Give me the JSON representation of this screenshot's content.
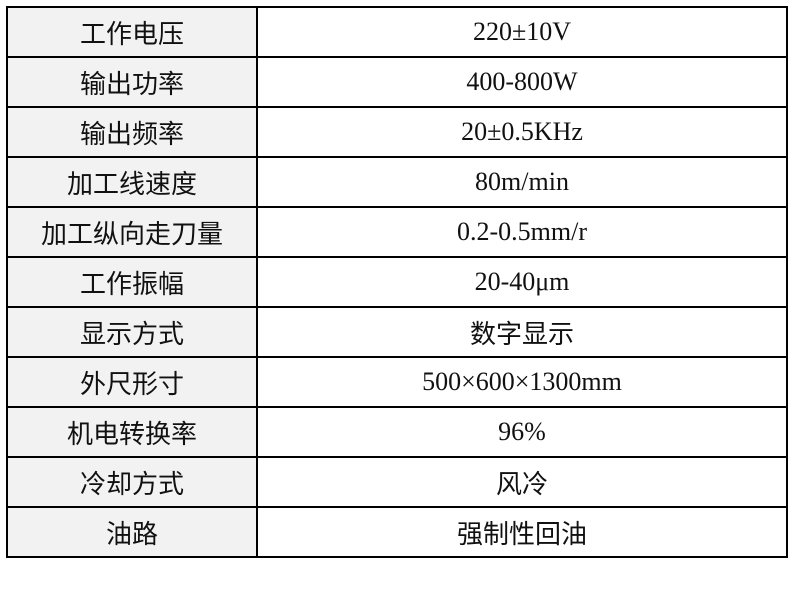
{
  "table": {
    "rows": [
      [
        "工作电压",
        "220±10V"
      ],
      [
        "输出功率",
        "400-800W"
      ],
      [
        "输出频率",
        "20±0.5KHz"
      ],
      [
        "加工线速度",
        "80m/min"
      ],
      [
        "加工纵向走刀量",
        "0.2-0.5mm/r"
      ],
      [
        "工作振幅",
        "20-40μm"
      ],
      [
        "显示方式",
        "数字显示"
      ],
      [
        "外尺形寸",
        "500×600×1300mm"
      ],
      [
        "机电转换率",
        "96%"
      ],
      [
        "冷却方式",
        "风冷"
      ],
      [
        "油路",
        "强制性回油"
      ]
    ]
  }
}
